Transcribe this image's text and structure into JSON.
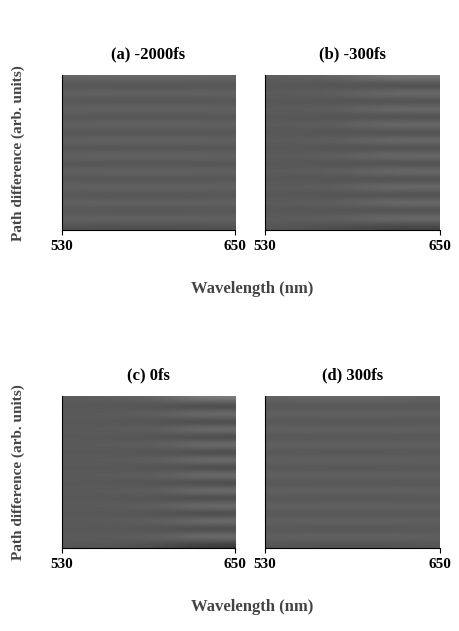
{
  "chart_data": [
    {
      "type": "heatmap",
      "title": "(a) -2000fs",
      "ylabel": "Path difference (arb. units)",
      "xlim": [
        530,
        650
      ],
      "xticks": [
        530,
        650
      ],
      "tick_labels": "x",
      "color": "gray",
      "value_range": [
        0,
        1
      ],
      "cells": [
        [
          0.4,
          0.41,
          0.41,
          0.41,
          0.41,
          0.4
        ],
        [
          0.32,
          0.31,
          0.31,
          0.31,
          0.31,
          0.32
        ],
        [
          0.4,
          0.41,
          0.41,
          0.41,
          0.41,
          0.4
        ],
        [
          0.32,
          0.31,
          0.31,
          0.31,
          0.31,
          0.32
        ],
        [
          0.4,
          0.41,
          0.41,
          0.41,
          0.41,
          0.4
        ],
        [
          0.32,
          0.31,
          0.31,
          0.31,
          0.31,
          0.32
        ],
        [
          0.4,
          0.41,
          0.41,
          0.41,
          0.41,
          0.4
        ],
        [
          0.32,
          0.31,
          0.31,
          0.31,
          0.31,
          0.32
        ],
        [
          0.4,
          0.41,
          0.41,
          0.41,
          0.41,
          0.4
        ],
        [
          0.32,
          0.31,
          0.31,
          0.31,
          0.31,
          0.32
        ],
        [
          0.4,
          0.41,
          0.41,
          0.41,
          0.41,
          0.4
        ],
        [
          0.32,
          0.31,
          0.31,
          0.31,
          0.31,
          0.32
        ],
        [
          0.4,
          0.41,
          0.41,
          0.41,
          0.41,
          0.4
        ],
        [
          0.32,
          0.31,
          0.31,
          0.31,
          0.31,
          0.32
        ],
        [
          0.4,
          0.41,
          0.41,
          0.41,
          0.41,
          0.4
        ],
        [
          0.32,
          0.31,
          0.31,
          0.31,
          0.31,
          0.32
        ],
        [
          0.4,
          0.41,
          0.41,
          0.41,
          0.41,
          0.4
        ],
        [
          0.32,
          0.31,
          0.31,
          0.31,
          0.31,
          0.32
        ],
        [
          0.4,
          0.41,
          0.41,
          0.41,
          0.41,
          0.4
        ],
        [
          0.32,
          0.31,
          0.31,
          0.31,
          0.31,
          0.32
        ]
      ]
    },
    {
      "type": "heatmap",
      "title": "(b) -300fs",
      "xlabel": "Wavelength (nm)",
      "xlim": [
        530,
        650
      ],
      "xticks": [
        530,
        650
      ],
      "tick_labels": "x",
      "color": "gray",
      "value_range": [
        0,
        1
      ],
      "cells": [
        [
          0.37,
          0.38,
          0.4,
          0.44,
          0.47,
          0.47
        ],
        [
          0.33,
          0.32,
          0.3,
          0.28,
          0.26,
          0.26
        ],
        [
          0.37,
          0.38,
          0.4,
          0.44,
          0.47,
          0.47
        ],
        [
          0.33,
          0.32,
          0.3,
          0.28,
          0.26,
          0.26
        ],
        [
          0.37,
          0.38,
          0.4,
          0.44,
          0.47,
          0.47
        ],
        [
          0.33,
          0.32,
          0.3,
          0.28,
          0.26,
          0.26
        ],
        [
          0.37,
          0.38,
          0.4,
          0.44,
          0.47,
          0.47
        ],
        [
          0.33,
          0.32,
          0.3,
          0.28,
          0.26,
          0.26
        ],
        [
          0.37,
          0.38,
          0.4,
          0.44,
          0.47,
          0.47
        ],
        [
          0.33,
          0.32,
          0.3,
          0.28,
          0.26,
          0.26
        ],
        [
          0.37,
          0.38,
          0.4,
          0.44,
          0.47,
          0.47
        ],
        [
          0.33,
          0.32,
          0.3,
          0.28,
          0.26,
          0.26
        ],
        [
          0.37,
          0.38,
          0.4,
          0.44,
          0.47,
          0.47
        ],
        [
          0.33,
          0.32,
          0.3,
          0.28,
          0.26,
          0.26
        ],
        [
          0.37,
          0.38,
          0.4,
          0.44,
          0.47,
          0.47
        ],
        [
          0.33,
          0.32,
          0.3,
          0.28,
          0.26,
          0.26
        ],
        [
          0.37,
          0.38,
          0.4,
          0.44,
          0.47,
          0.47
        ],
        [
          0.33,
          0.32,
          0.3,
          0.28,
          0.26,
          0.26
        ],
        [
          0.37,
          0.38,
          0.4,
          0.44,
          0.47,
          0.47
        ],
        [
          0.33,
          0.32,
          0.3,
          0.28,
          0.26,
          0.26
        ]
      ]
    },
    {
      "type": "heatmap",
      "title": "(c) 0fs",
      "ylabel": "Path difference (arb. units)",
      "xlim": [
        530,
        650
      ],
      "xticks": [
        530,
        650
      ],
      "tick_labels": "x",
      "color": "gray",
      "value_range": [
        0,
        1
      ],
      "cells": [
        [
          0.36,
          0.37,
          0.38,
          0.41,
          0.48,
          0.5
        ],
        [
          0.34,
          0.33,
          0.32,
          0.29,
          0.24,
          0.22
        ],
        [
          0.36,
          0.37,
          0.38,
          0.41,
          0.48,
          0.5
        ],
        [
          0.34,
          0.33,
          0.32,
          0.29,
          0.24,
          0.22
        ],
        [
          0.36,
          0.37,
          0.38,
          0.41,
          0.48,
          0.5
        ],
        [
          0.34,
          0.33,
          0.32,
          0.29,
          0.24,
          0.22
        ],
        [
          0.36,
          0.37,
          0.38,
          0.41,
          0.48,
          0.5
        ],
        [
          0.34,
          0.33,
          0.32,
          0.29,
          0.24,
          0.22
        ],
        [
          0.36,
          0.37,
          0.38,
          0.41,
          0.48,
          0.5
        ],
        [
          0.34,
          0.33,
          0.32,
          0.29,
          0.24,
          0.22
        ],
        [
          0.36,
          0.37,
          0.38,
          0.41,
          0.48,
          0.5
        ],
        [
          0.34,
          0.33,
          0.32,
          0.29,
          0.24,
          0.22
        ],
        [
          0.36,
          0.37,
          0.38,
          0.41,
          0.48,
          0.5
        ],
        [
          0.34,
          0.33,
          0.32,
          0.29,
          0.24,
          0.22
        ],
        [
          0.36,
          0.37,
          0.38,
          0.41,
          0.48,
          0.5
        ],
        [
          0.34,
          0.33,
          0.32,
          0.29,
          0.24,
          0.22
        ],
        [
          0.36,
          0.37,
          0.38,
          0.41,
          0.48,
          0.5
        ],
        [
          0.34,
          0.33,
          0.32,
          0.29,
          0.24,
          0.22
        ],
        [
          0.36,
          0.37,
          0.38,
          0.41,
          0.48,
          0.5
        ],
        [
          0.34,
          0.33,
          0.32,
          0.29,
          0.24,
          0.22
        ]
      ]
    },
    {
      "type": "heatmap",
      "title": "(d) 300fs",
      "xlabel": "Wavelength (nm)",
      "xlim": [
        530,
        650
      ],
      "xticks": [
        530,
        650
      ],
      "tick_labels": "x",
      "color": "gray",
      "value_range": [
        0,
        1
      ],
      "cells": [
        [
          0.39,
          0.4,
          0.4,
          0.4,
          0.4,
          0.39
        ],
        [
          0.33,
          0.32,
          0.32,
          0.32,
          0.32,
          0.33
        ],
        [
          0.39,
          0.4,
          0.4,
          0.4,
          0.4,
          0.39
        ],
        [
          0.33,
          0.32,
          0.32,
          0.32,
          0.32,
          0.33
        ],
        [
          0.39,
          0.4,
          0.4,
          0.4,
          0.4,
          0.39
        ],
        [
          0.33,
          0.32,
          0.32,
          0.32,
          0.32,
          0.33
        ],
        [
          0.39,
          0.4,
          0.4,
          0.4,
          0.4,
          0.39
        ],
        [
          0.33,
          0.32,
          0.32,
          0.32,
          0.32,
          0.33
        ],
        [
          0.39,
          0.4,
          0.4,
          0.4,
          0.4,
          0.39
        ],
        [
          0.33,
          0.32,
          0.32,
          0.32,
          0.32,
          0.33
        ],
        [
          0.39,
          0.4,
          0.4,
          0.4,
          0.4,
          0.39
        ],
        [
          0.33,
          0.32,
          0.32,
          0.32,
          0.32,
          0.33
        ],
        [
          0.39,
          0.4,
          0.4,
          0.4,
          0.4,
          0.39
        ],
        [
          0.33,
          0.32,
          0.32,
          0.32,
          0.32,
          0.33
        ],
        [
          0.39,
          0.4,
          0.4,
          0.4,
          0.4,
          0.39
        ],
        [
          0.33,
          0.32,
          0.32,
          0.32,
          0.32,
          0.33
        ],
        [
          0.39,
          0.4,
          0.4,
          0.4,
          0.4,
          0.39
        ],
        [
          0.33,
          0.32,
          0.32,
          0.32,
          0.32,
          0.33
        ],
        [
          0.39,
          0.4,
          0.4,
          0.4,
          0.4,
          0.39
        ],
        [
          0.33,
          0.32,
          0.32,
          0.32,
          0.32,
          0.33
        ]
      ]
    }
  ]
}
